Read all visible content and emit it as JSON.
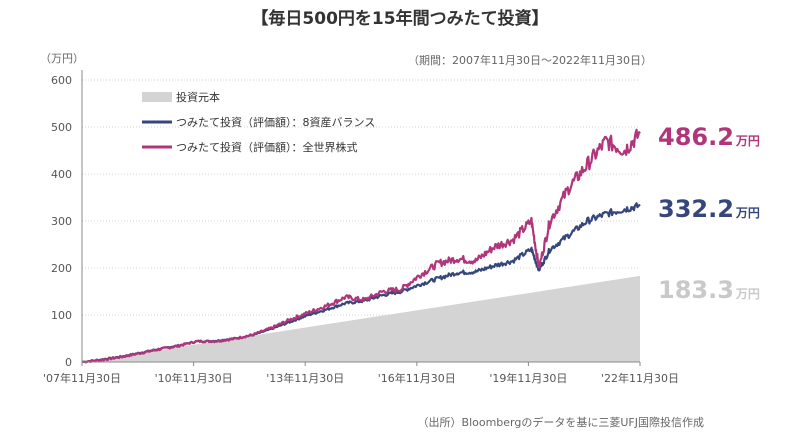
{
  "header": {
    "title": "【毎日500円を15年間つみたて投資】",
    "unit": "（万円）",
    "period": "（期間：2007年11月30日～2022年11月30日）",
    "source": "（出所）Bloombergのデータを基に三菱UFJ国際投信作成"
  },
  "colors": {
    "principal": "#d4d4d4",
    "balance": "#35467c",
    "world": "#b0357a",
    "axis": "#888888",
    "grid": "#d0d0d0"
  },
  "chart_data": {
    "type": "line",
    "ylim": [
      0,
      600
    ],
    "y_ticks": [
      "0",
      "100",
      "200",
      "300",
      "400",
      "500",
      "600"
    ],
    "x_range": [
      2007.917,
      2022.917
    ],
    "x_ticks": [
      {
        "label": "'07年11月30日",
        "x": 2007.917
      },
      {
        "label": "'10年11月30日",
        "x": 2010.917
      },
      {
        "label": "'13年11月30日",
        "x": 2013.917
      },
      {
        "label": "'16年11月30日",
        "x": 2016.917
      },
      {
        "label": "'19年11月30日",
        "x": 2019.917
      },
      {
        "label": "'22年11月30日",
        "x": 2022.917
      }
    ],
    "legend": [
      "投資元本",
      "つみたて投資（評価額）：8資産バランス",
      "つみたて投資（評価額）：全世界株式"
    ],
    "series": [
      {
        "name": "投資元本",
        "style": "area",
        "x": [
          2007.917,
          2022.917
        ],
        "values": [
          0,
          183.3
        ]
      },
      {
        "name": "つみたて投資（評価額）：8資産バランス",
        "style": "line",
        "x": [
          2007.917,
          2008.5,
          2009.0,
          2009.5,
          2010.0,
          2010.5,
          2011.0,
          2011.5,
          2012.0,
          2012.5,
          2013.0,
          2013.5,
          2014.0,
          2014.5,
          2015.0,
          2015.5,
          2016.0,
          2016.5,
          2017.0,
          2017.5,
          2018.0,
          2018.5,
          2019.0,
          2019.5,
          2020.0,
          2020.2,
          2020.5,
          2021.0,
          2021.5,
          2022.0,
          2022.5,
          2022.917
        ],
        "values": [
          0,
          6,
          12,
          20,
          28,
          35,
          44,
          45,
          50,
          57,
          70,
          85,
          100,
          112,
          125,
          130,
          142,
          150,
          165,
          178,
          190,
          192,
          205,
          215,
          240,
          195,
          240,
          270,
          300,
          315,
          325,
          332.2
        ]
      },
      {
        "name": "つみたて投資（評価額）：全世界株式",
        "style": "line",
        "x": [
          2007.917,
          2008.5,
          2009.0,
          2009.5,
          2010.0,
          2010.5,
          2011.0,
          2011.5,
          2012.0,
          2012.5,
          2013.0,
          2013.5,
          2014.0,
          2014.5,
          2015.0,
          2015.5,
          2016.0,
          2016.5,
          2017.0,
          2017.5,
          2018.0,
          2018.5,
          2019.0,
          2019.5,
          2020.0,
          2020.2,
          2020.5,
          2021.0,
          2021.5,
          2022.0,
          2022.5,
          2022.917
        ],
        "values": [
          0,
          5,
          11,
          19,
          27,
          34,
          44,
          44,
          49,
          58,
          72,
          90,
          105,
          120,
          138,
          132,
          150,
          155,
          185,
          210,
          220,
          215,
          245,
          260,
          300,
          200,
          300,
          370,
          420,
          470,
          450,
          486.2
        ]
      }
    ],
    "end_labels": [
      {
        "series": 2,
        "value": "486.2",
        "unit": "万円"
      },
      {
        "series": 1,
        "value": "332.2",
        "unit": "万円"
      },
      {
        "series": 0,
        "value": "183.3",
        "unit": "万円"
      }
    ]
  }
}
